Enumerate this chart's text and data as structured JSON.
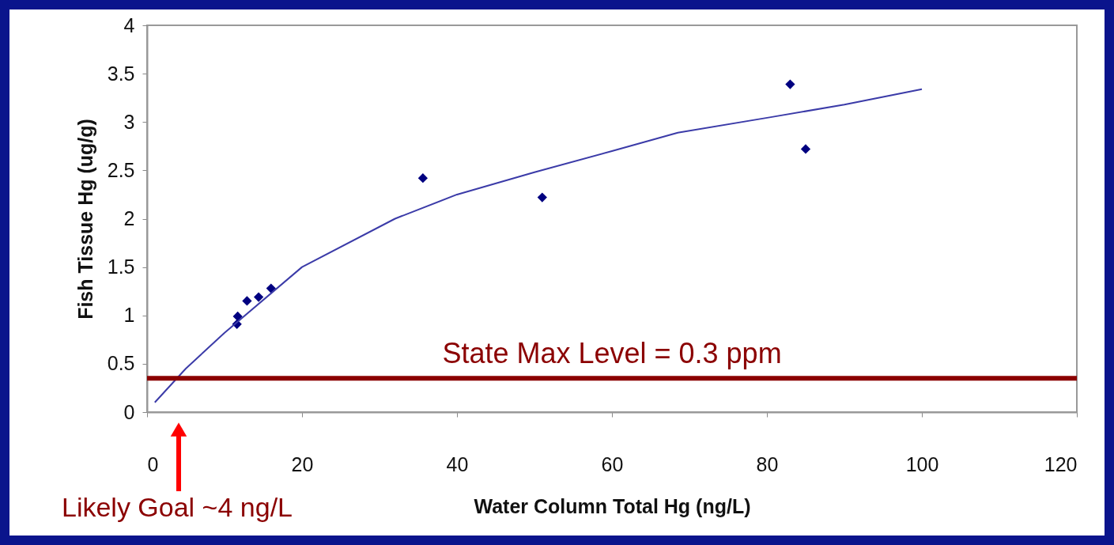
{
  "chart_data": {
    "type": "scatter",
    "xlabel": "Water Column Total Hg (ng/L)",
    "ylabel": "Fish Tissue Hg (ug/g)",
    "xlim": [
      0,
      120
    ],
    "xticks": [
      0,
      20,
      40,
      60,
      80,
      100,
      120
    ],
    "ylim": [
      0,
      4
    ],
    "yticks": [
      0,
      0.5,
      1,
      1.5,
      2,
      2.5,
      3,
      3.5,
      4
    ],
    "grid": false,
    "series": [
      {
        "type": "scatter",
        "marker": "diamond",
        "color": "#000080",
        "x": [
          11.6,
          11.7,
          12.9,
          14.4,
          16,
          35.6,
          51,
          83,
          85
        ],
        "values": [
          0.91,
          0.99,
          1.15,
          1.19,
          1.28,
          2.42,
          2.22,
          3.39,
          2.72
        ]
      },
      {
        "type": "line",
        "color": "#3b3ba8",
        "x": [
          1,
          5,
          10,
          20,
          32,
          40,
          50,
          60,
          68.5,
          80.5,
          90,
          100
        ],
        "values": [
          0.1,
          0.45,
          0.82,
          1.5,
          2.0,
          2.25,
          2.48,
          2.7,
          2.89,
          3.05,
          3.18,
          3.34
        ]
      }
    ],
    "ref_lines": [
      {
        "axis": "y",
        "value": 0.35,
        "label": "State Max Level = 0.3 ppm",
        "color": "#8b0000"
      }
    ],
    "annotations": [
      "Likely Goal ~4 ng/L"
    ]
  }
}
